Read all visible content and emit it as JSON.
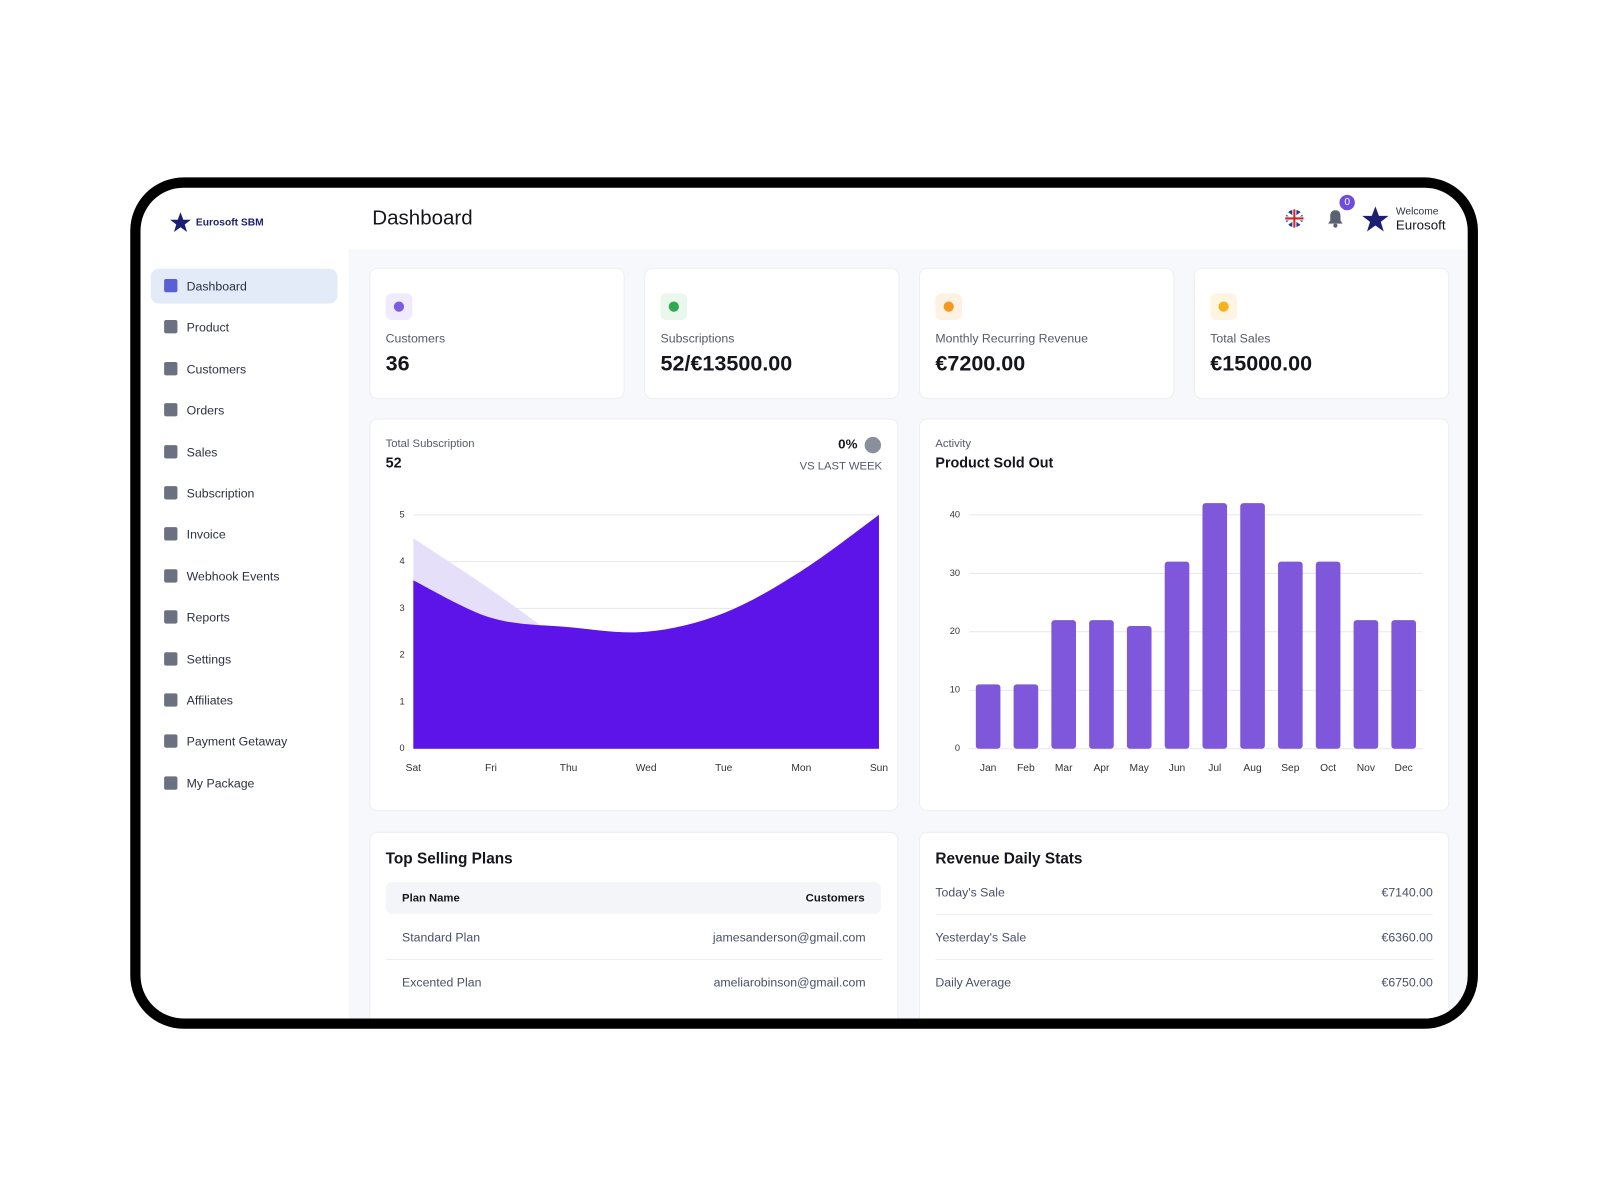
{
  "sidebar": {
    "brand": "Eurosoft SBM",
    "menu": [
      "Dashboard",
      "Product",
      "Customers",
      "Orders",
      "Sales",
      "Subscription",
      "Invoice",
      "Webhook Events",
      "Reports",
      "Settings",
      "Affiliates",
      "Payment Getaway",
      "My Package"
    ]
  },
  "header": {
    "title": "Dashboard",
    "notifications": "0",
    "welcome": "Welcome",
    "user": "Eurosoft"
  },
  "stats": [
    {
      "label": "Customers",
      "value": "36"
    },
    {
      "label": "Subscriptions",
      "value": "52/€13500.00"
    },
    {
      "label": "Monthly Recurring Revenue",
      "value": "€7200.00"
    },
    {
      "label": "Total Sales",
      "value": "€15000.00"
    }
  ],
  "chart_data": [
    {
      "type": "area",
      "title": "Total Subscription",
      "total": "52",
      "change": "0%",
      "change_label": "VS LAST WEEK",
      "categories": [
        "Sat",
        "Fri",
        "Thu",
        "Wed",
        "Tue",
        "Mon",
        "Sun"
      ],
      "series": [
        {
          "color": "#e6dffa",
          "values": [
            4.5,
            3.4,
            2.2,
            null,
            null,
            null,
            null
          ]
        },
        {
          "color": "#5c14e8",
          "values": [
            3.6,
            2.8,
            2.6,
            2.5,
            2.9,
            3.8,
            5
          ]
        }
      ],
      "ylim": [
        0,
        5
      ],
      "yticks": [
        0,
        1,
        2,
        3,
        4,
        5
      ],
      "grid": true
    },
    {
      "type": "bar",
      "subtitle": "Activity",
      "title": "Product Sold Out",
      "categories": [
        "Jan",
        "Feb",
        "Mar",
        "Apr",
        "May",
        "Jun",
        "Jul",
        "Aug",
        "Sep",
        "Oct",
        "Nov",
        "Dec"
      ],
      "values": [
        11,
        11,
        22,
        22,
        21,
        32,
        42,
        42,
        32,
        32,
        22,
        22
      ],
      "color": "#7e57db",
      "ylim": [
        0,
        42
      ],
      "yticks": [
        0,
        10,
        20,
        30,
        40
      ],
      "grid": true
    }
  ],
  "top_selling": {
    "title": "Top Selling Plans",
    "columns": [
      "Plan Name",
      "Customers"
    ],
    "rows": [
      [
        "Standard Plan",
        "jamesanderson@gmail.com"
      ],
      [
        "Excented Plan",
        "ameliarobinson@gmail.com"
      ]
    ]
  },
  "revenue": {
    "title": "Revenue Daily Stats",
    "rows": [
      [
        "Today's Sale",
        "€7140.00"
      ],
      [
        "Yesterday's Sale",
        "€6360.00"
      ],
      [
        "Daily Average",
        "€6750.00"
      ]
    ]
  }
}
